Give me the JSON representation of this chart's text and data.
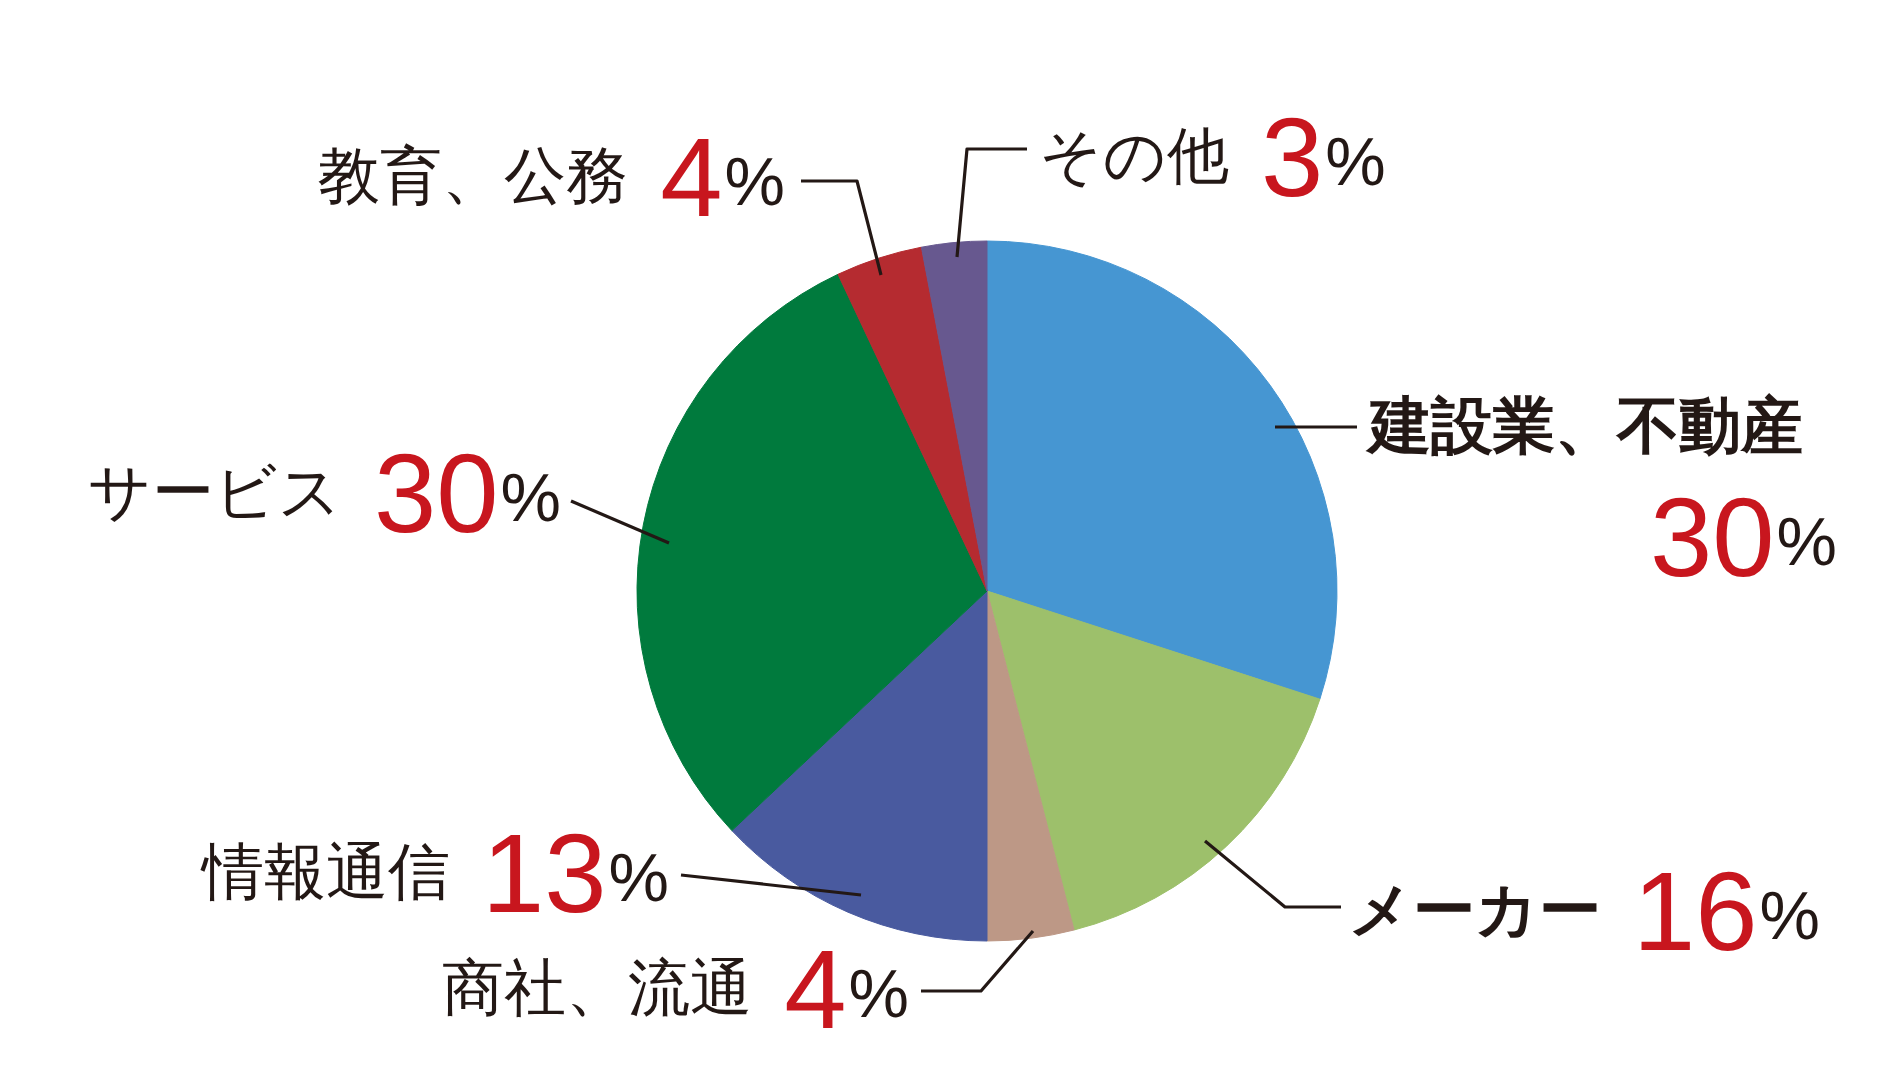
{
  "chart_data": {
    "type": "pie",
    "categories": [
      "建設業、不動産",
      "メーカー",
      "商社、流通",
      "情報通信",
      "サービス",
      "教育、公務",
      "その他"
    ],
    "values": [
      30,
      16,
      4,
      13,
      30,
      4,
      3
    ],
    "colors": [
      "#4696d2",
      "#9dc06b",
      "#bd9886",
      "#495a9f",
      "#007a3d",
      "#b52b30",
      "#67588f"
    ],
    "value_labels": [
      "30%",
      "16%",
      "4%",
      "13%",
      "30%",
      "4%",
      "3%"
    ]
  }
}
